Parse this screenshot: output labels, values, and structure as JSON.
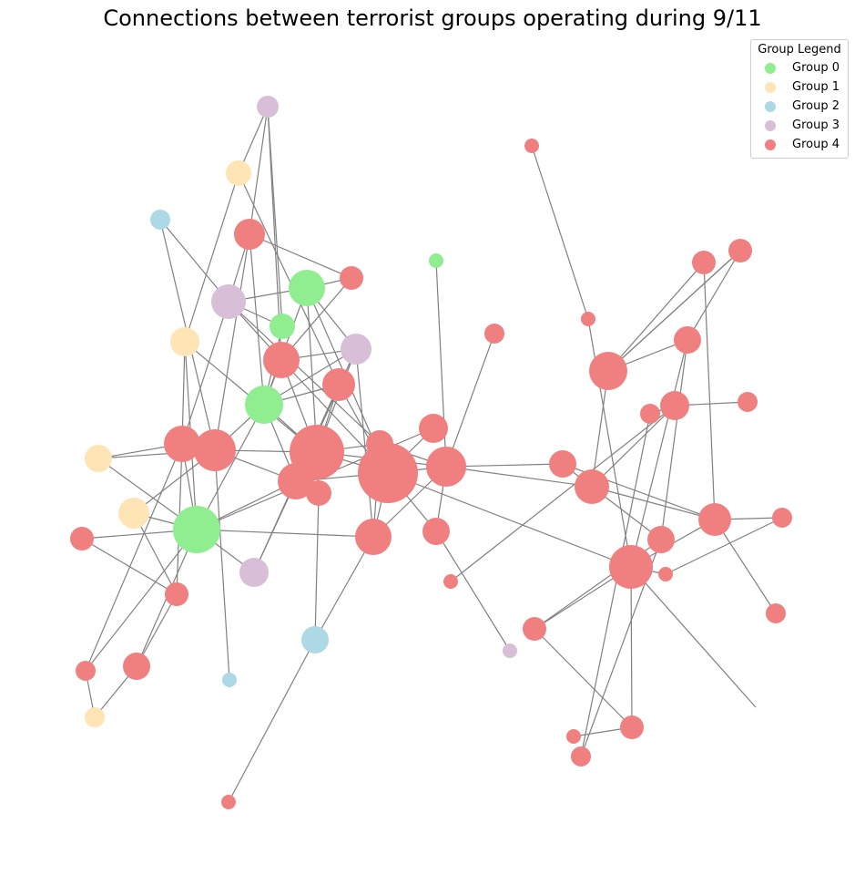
{
  "title": "Connections between terrorist groups operating during 9/11",
  "legend": {
    "title": "Group Legend",
    "items": [
      {
        "label": "Group 0",
        "color": "#90ee90"
      },
      {
        "label": "Group 1",
        "color": "#ffe4b5"
      },
      {
        "label": "Group 2",
        "color": "#add8e6"
      },
      {
        "label": "Group 3",
        "color": "#d8bfd8"
      },
      {
        "label": "Group 4",
        "color": "#f08080"
      }
    ]
  },
  "edge_color": "#808080"
}
